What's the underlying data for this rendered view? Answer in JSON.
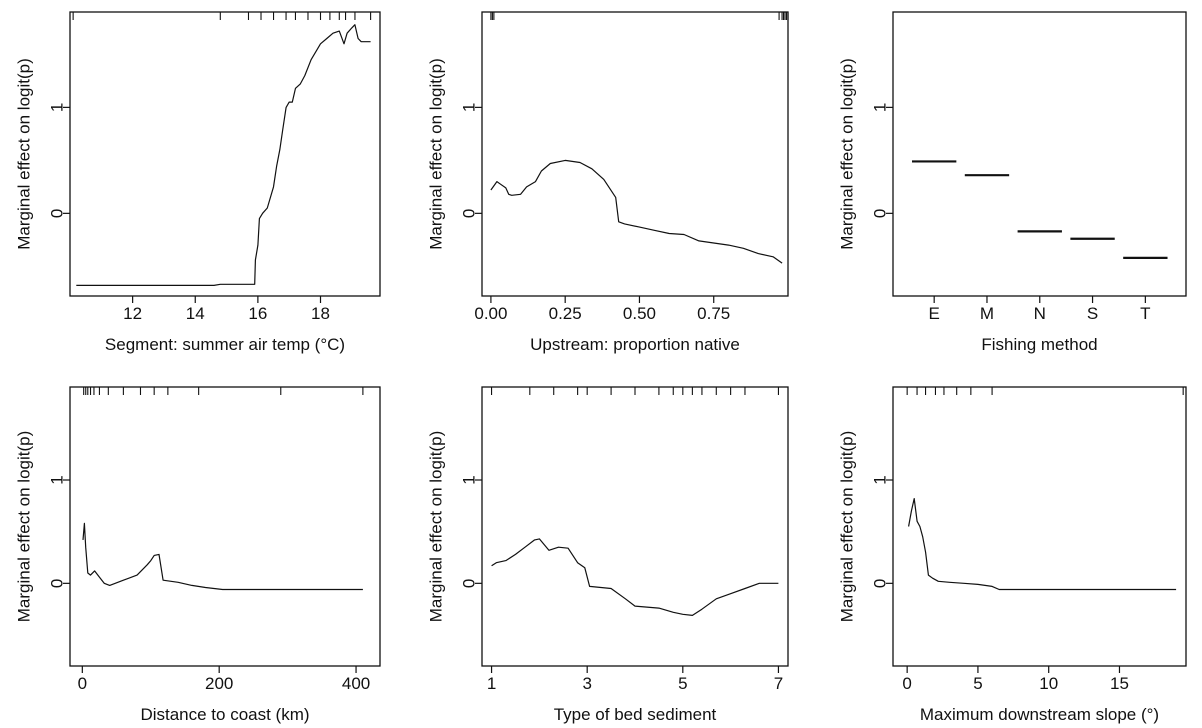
{
  "chart_data": [
    {
      "type": "line",
      "xlabel": "Segment: summer air temp (°C)",
      "ylabel": "Marginal effect on logit(p)",
      "xlim": [
        10.0,
        19.9
      ],
      "ylim": [
        -0.78,
        1.9
      ],
      "xticks": [
        12,
        14,
        16,
        18
      ],
      "xtick_labels": [
        "12",
        "14",
        "16",
        "18"
      ],
      "yticks": [
        0,
        1
      ],
      "ytick_labels": [
        "0",
        "1"
      ],
      "grid": false,
      "rug": [
        10.1,
        14.8,
        15.7,
        16.1,
        16.5,
        16.9,
        17.2,
        17.6,
        18.0,
        18.3,
        18.6,
        18.8,
        19.1,
        19.6
      ],
      "series": [
        {
          "x": [
            10.2,
            14.6,
            14.8,
            15.9,
            15.92,
            16.0,
            16.05,
            16.15,
            16.3,
            16.5,
            16.6,
            16.7,
            16.8,
            16.9,
            17.0,
            17.1,
            17.2,
            17.35,
            17.5,
            17.7,
            17.9,
            18.0,
            18.2,
            18.4,
            18.6,
            18.75,
            18.85,
            19.0,
            19.1,
            19.2,
            19.3,
            19.6
          ],
          "y": [
            -0.68,
            -0.68,
            -0.67,
            -0.67,
            -0.44,
            -0.3,
            -0.05,
            0.0,
            0.05,
            0.25,
            0.45,
            0.6,
            0.8,
            1.0,
            1.05,
            1.05,
            1.18,
            1.22,
            1.3,
            1.45,
            1.55,
            1.6,
            1.65,
            1.7,
            1.72,
            1.6,
            1.7,
            1.75,
            1.78,
            1.65,
            1.62,
            1.62
          ]
        }
      ]
    },
    {
      "type": "line",
      "xlabel": "Upstream: proportion native",
      "ylabel": "Marginal effect on logit(p)",
      "xlim": [
        -0.03,
        1.0
      ],
      "ylim": [
        -0.78,
        1.9
      ],
      "xticks": [
        0.0,
        0.25,
        0.5,
        0.75
      ],
      "xtick_labels": [
        "0.00",
        "0.25",
        "0.50",
        "0.75"
      ],
      "yticks": [
        0,
        1
      ],
      "ytick_labels": [
        "0",
        "1"
      ],
      "grid": false,
      "rug": [
        0.0,
        0.005,
        0.01,
        0.97,
        0.98,
        0.985,
        0.99,
        0.995,
        1.0
      ],
      "series": [
        {
          "x": [
            0.0,
            0.02,
            0.03,
            0.05,
            0.06,
            0.07,
            0.1,
            0.12,
            0.15,
            0.17,
            0.2,
            0.25,
            0.3,
            0.34,
            0.38,
            0.42,
            0.43,
            0.45,
            0.5,
            0.55,
            0.6,
            0.65,
            0.7,
            0.75,
            0.8,
            0.85,
            0.9,
            0.95,
            0.98
          ],
          "y": [
            0.22,
            0.3,
            0.28,
            0.24,
            0.18,
            0.17,
            0.18,
            0.25,
            0.3,
            0.4,
            0.47,
            0.5,
            0.48,
            0.42,
            0.32,
            0.15,
            -0.08,
            -0.1,
            -0.13,
            -0.16,
            -0.19,
            -0.2,
            -0.26,
            -0.28,
            -0.3,
            -0.33,
            -0.38,
            -0.41,
            -0.47
          ]
        }
      ]
    },
    {
      "type": "bar",
      "xlabel": "Fishing method",
      "ylabel": "Marginal effect on logit(p)",
      "ylim": [
        -0.78,
        1.9
      ],
      "categories": [
        "E",
        "M",
        "N",
        "S",
        "T"
      ],
      "values": [
        0.49,
        0.36,
        -0.17,
        -0.24,
        -0.42
      ],
      "yticks": [
        0,
        1
      ],
      "ytick_labels": [
        "0",
        "1"
      ],
      "grid": false
    },
    {
      "type": "line",
      "xlabel": "Distance to coast (km)",
      "ylabel": "Marginal effect on logit(p)",
      "xlim": [
        -18,
        435
      ],
      "ylim": [
        -0.8,
        1.9
      ],
      "xticks": [
        0,
        200,
        400
      ],
      "xtick_labels": [
        "0",
        "200",
        "400"
      ],
      "yticks": [
        0,
        1
      ],
      "ytick_labels": [
        "0",
        "1"
      ],
      "grid": false,
      "rug": [
        2,
        5,
        8,
        12,
        17,
        25,
        38,
        60,
        85,
        105,
        125,
        170,
        290,
        410
      ],
      "series": [
        {
          "x": [
            1,
            3,
            5,
            8,
            12,
            18,
            25,
            32,
            40,
            60,
            80,
            95,
            100,
            105,
            112,
            118,
            140,
            160,
            180,
            205,
            250,
            300,
            350,
            410
          ],
          "y": [
            0.42,
            0.58,
            0.35,
            0.1,
            0.08,
            0.12,
            0.06,
            0.0,
            -0.02,
            0.03,
            0.08,
            0.18,
            0.22,
            0.27,
            0.28,
            0.03,
            0.01,
            -0.02,
            -0.04,
            -0.06,
            -0.06,
            -0.06,
            -0.06,
            -0.06
          ]
        }
      ]
    },
    {
      "type": "line",
      "xlabel": "Type of bed sediment",
      "ylabel": "Marginal effect on logit(p)",
      "xlim": [
        0.8,
        7.2
      ],
      "ylim": [
        -0.8,
        1.9
      ],
      "xticks": [
        1,
        3,
        5,
        7
      ],
      "xtick_labels": [
        "1",
        "3",
        "5",
        "7"
      ],
      "yticks": [
        0,
        1
      ],
      "ytick_labels": [
        "0",
        "1"
      ],
      "grid": false,
      "rug": [
        1.0,
        1.8,
        2.3,
        2.8,
        3.0,
        3.5,
        4.0,
        4.5,
        4.8,
        5.0,
        5.2,
        5.4,
        5.7,
        6.0,
        6.3,
        7.0
      ],
      "series": [
        {
          "x": [
            1.0,
            1.1,
            1.3,
            1.5,
            1.7,
            1.9,
            2.0,
            2.2,
            2.4,
            2.6,
            2.8,
            2.95,
            3.05,
            3.5,
            3.8,
            4.0,
            4.5,
            4.8,
            5.0,
            5.2,
            5.4,
            5.7,
            6.0,
            6.3,
            6.6,
            7.0
          ],
          "y": [
            0.17,
            0.2,
            0.22,
            0.28,
            0.35,
            0.42,
            0.43,
            0.32,
            0.35,
            0.34,
            0.2,
            0.15,
            -0.03,
            -0.05,
            -0.15,
            -0.22,
            -0.24,
            -0.28,
            -0.3,
            -0.31,
            -0.25,
            -0.15,
            -0.1,
            -0.05,
            0.0,
            0.0
          ]
        }
      ]
    },
    {
      "type": "line",
      "xlabel": "Maximum downstream slope (°)",
      "ylabel": "Marginal effect on logit(p)",
      "xlim": [
        -1.0,
        19.7
      ],
      "ylim": [
        -0.8,
        1.9
      ],
      "xticks": [
        0,
        5,
        10,
        15
      ],
      "xtick_labels": [
        "0",
        "5",
        "10",
        "15"
      ],
      "yticks": [
        0,
        1
      ],
      "ytick_labels": [
        "0",
        "1"
      ],
      "grid": false,
      "rug": [
        0.0,
        0.7,
        1.3,
        2.0,
        2.6,
        3.5,
        4.5,
        6.0,
        19.5
      ],
      "series": [
        {
          "x": [
            0.1,
            0.3,
            0.5,
            0.7,
            0.9,
            1.1,
            1.3,
            1.5,
            1.8,
            2.2,
            3.0,
            4.0,
            5.0,
            6.0,
            6.5,
            8.0,
            10.0,
            15.0,
            19.0
          ],
          "y": [
            0.55,
            0.7,
            0.82,
            0.6,
            0.55,
            0.45,
            0.3,
            0.08,
            0.05,
            0.02,
            0.01,
            0.0,
            -0.01,
            -0.03,
            -0.06,
            -0.06,
            -0.06,
            -0.06,
            -0.06
          ]
        }
      ]
    }
  ]
}
